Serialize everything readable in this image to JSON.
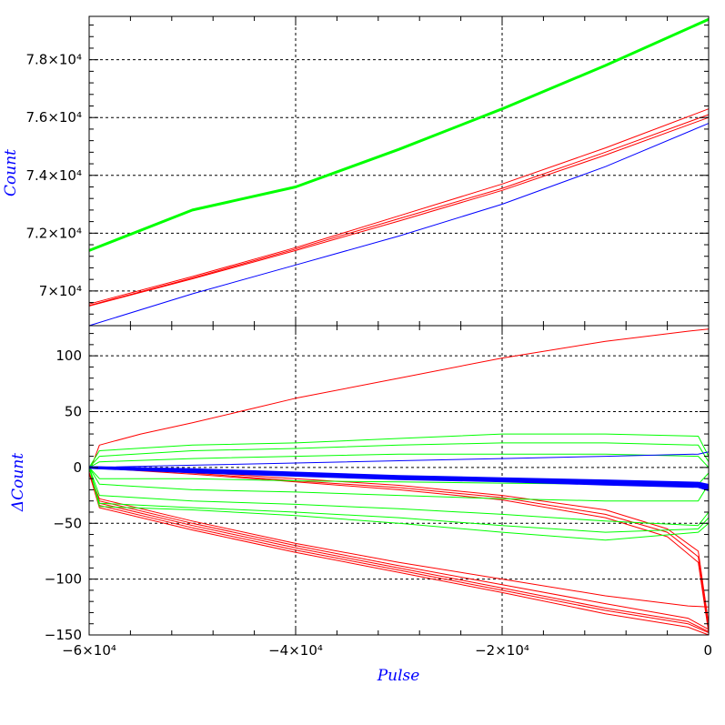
{
  "chart_data": [
    {
      "type": "line",
      "panel": "top",
      "ylabel": "Count",
      "ylim": [
        68800,
        79500
      ],
      "xlim": [
        -60000,
        0
      ],
      "grid": true,
      "ytick_labels": [
        "7×10⁴",
        "7.2×10⁴",
        "7.4×10⁴",
        "7.6×10⁴",
        "7.8×10⁴"
      ],
      "yticks": [
        70000,
        72000,
        74000,
        76000,
        78000
      ],
      "series": [
        {
          "color": "#00ff00",
          "x": [
            -60000,
            -50000,
            -40000,
            -30000,
            -20000,
            -10000,
            0
          ],
          "values": [
            71400,
            72800,
            73600,
            74900,
            76300,
            77800,
            79400
          ]
        },
        {
          "color": "#ff0000",
          "x": [
            -60000,
            -50000,
            -40000,
            -30000,
            -20000,
            -10000,
            0
          ],
          "values": [
            69500,
            70450,
            71450,
            72500,
            73550,
            74800,
            76100
          ]
        },
        {
          "color": "#ff0000",
          "x": [
            -60000,
            -50000,
            -40000,
            -30000,
            -20000,
            -10000,
            0
          ],
          "values": [
            69550,
            70500,
            71500,
            72600,
            73700,
            74950,
            76300
          ]
        },
        {
          "color": "#ff0000",
          "x": [
            -60000,
            -50000,
            -40000,
            -30000,
            -20000,
            -10000,
            0
          ],
          "values": [
            69480,
            70420,
            71400,
            72420,
            73480,
            74700,
            76000
          ]
        },
        {
          "color": "#0000ff",
          "x": [
            -60000,
            -50000,
            -40000,
            -30000,
            -20000,
            -10000,
            0
          ],
          "values": [
            68800,
            69900,
            70900,
            71900,
            73000,
            74300,
            75800
          ]
        }
      ]
    },
    {
      "type": "line",
      "panel": "bottom",
      "xlabel": "Pulse",
      "ylabel": "ΔCount",
      "ylim": [
        -150,
        127
      ],
      "xlim": [
        -60000,
        0
      ],
      "grid": true,
      "yticks": [
        -150,
        -100,
        -50,
        0,
        50,
        100
      ],
      "ytick_labels": [
        "−150",
        "−100",
        "−50",
        "0",
        "50",
        "100"
      ],
      "xticks": [
        -60000,
        -40000,
        -20000,
        0
      ],
      "xtick_labels": [
        "−6×10⁴",
        "−4×10⁴",
        "−2×10⁴",
        "0"
      ],
      "series": [
        {
          "color": "#ff0000",
          "x": [
            -60000,
            -59000,
            -55000,
            -50000,
            -40000,
            -30000,
            -20000,
            -10000,
            -2000,
            0
          ],
          "values": [
            -5,
            20,
            30,
            40,
            62,
            80,
            98,
            113,
            122,
            124
          ]
        },
        {
          "color": "#ff0000",
          "x": [
            -60000,
            -59000,
            -50000,
            -40000,
            -30000,
            -20000,
            -10000,
            -2000,
            0
          ],
          "values": [
            -5,
            -30,
            -50,
            -70,
            -88,
            -105,
            -122,
            -135,
            -145
          ]
        },
        {
          "color": "#ff0000",
          "x": [
            -60000,
            -59000,
            -50000,
            -40000,
            -30000,
            -20000,
            -10000,
            -2000,
            0
          ],
          "values": [
            -5,
            -32,
            -52,
            -72,
            -90,
            -108,
            -126,
            -138,
            -147
          ]
        },
        {
          "color": "#ff0000",
          "x": [
            -60000,
            -59000,
            -50000,
            -40000,
            -30000,
            -20000,
            -10000,
            -2000,
            0
          ],
          "values": [
            -5,
            -34,
            -54,
            -74,
            -92,
            -110,
            -128,
            -140,
            -148
          ]
        },
        {
          "color": "#ff0000",
          "x": [
            -60000,
            -59000,
            -50000,
            -40000,
            -30000,
            -20000,
            -10000,
            -2000,
            0
          ],
          "values": [
            -5,
            -36,
            -56,
            -76,
            -94,
            -112,
            -131,
            -143,
            -150
          ]
        },
        {
          "color": "#ff0000",
          "x": [
            -60000,
            -59000,
            -50000,
            -40000,
            -30000,
            -20000,
            -10000,
            -2000,
            0
          ],
          "values": [
            -5,
            -28,
            -48,
            -68,
            -85,
            -100,
            -115,
            -124,
            -125
          ]
        },
        {
          "color": "#ff0000",
          "x": [
            -60000,
            -55000,
            -50000,
            -40000,
            -30000,
            -20000,
            -10000,
            -4000,
            -1000,
            0
          ],
          "values": [
            0,
            -2,
            -5,
            -12,
            -18,
            -27,
            -42,
            -58,
            -80,
            -145
          ]
        },
        {
          "color": "#ff0000",
          "x": [
            -60000,
            -55000,
            -50000,
            -40000,
            -30000,
            -20000,
            -10000,
            -4000,
            -1000,
            0
          ],
          "values": [
            0,
            -3,
            -6,
            -13,
            -20,
            -29,
            -45,
            -62,
            -85,
            -148
          ]
        },
        {
          "color": "#ff0000",
          "x": [
            -60000,
            -55000,
            -50000,
            -40000,
            -30000,
            -20000,
            -10000,
            -4000,
            -1000,
            0
          ],
          "values": [
            0,
            -1,
            -4,
            -10,
            -16,
            -25,
            -38,
            -55,
            -75,
            -140
          ]
        },
        {
          "color": "#00ff00",
          "x": [
            -60000,
            -59000,
            -50000,
            -40000,
            -30000,
            -20000,
            -10000,
            -1000,
            0
          ],
          "values": [
            0,
            15,
            20,
            22,
            26,
            30,
            30,
            28,
            10
          ]
        },
        {
          "color": "#00ff00",
          "x": [
            -60000,
            -59000,
            -50000,
            -40000,
            -30000,
            -20000,
            -10000,
            -1000,
            0
          ],
          "values": [
            0,
            10,
            15,
            17,
            20,
            22,
            22,
            20,
            5
          ]
        },
        {
          "color": "#00ff00",
          "x": [
            -60000,
            -59000,
            -50000,
            -40000,
            -30000,
            -20000,
            -10000,
            -1000,
            0
          ],
          "values": [
            0,
            5,
            8,
            10,
            12,
            12,
            12,
            10,
            0
          ]
        },
        {
          "color": "#00ff00",
          "x": [
            -60000,
            -59000,
            -50000,
            -40000,
            -30000,
            -20000,
            -10000,
            -1000,
            0
          ],
          "values": [
            0,
            -10,
            -10,
            -12,
            -13,
            -14,
            -15,
            -15,
            -5
          ]
        },
        {
          "color": "#00ff00",
          "x": [
            -60000,
            -59000,
            -50000,
            -40000,
            -30000,
            -20000,
            -10000,
            -1000,
            0
          ],
          "values": [
            0,
            -15,
            -20,
            -22,
            -25,
            -28,
            -30,
            -30,
            -15
          ]
        },
        {
          "color": "#00ff00",
          "x": [
            -60000,
            -59000,
            -50000,
            -40000,
            -30000,
            -20000,
            -10000,
            -1000,
            0
          ],
          "values": [
            0,
            -25,
            -30,
            -33,
            -37,
            -42,
            -48,
            -52,
            -40
          ]
        },
        {
          "color": "#00ff00",
          "x": [
            -60000,
            -59000,
            -50000,
            -40000,
            -30000,
            -20000,
            -10000,
            -1000,
            0
          ],
          "values": [
            0,
            -32,
            -36,
            -40,
            -45,
            -52,
            -58,
            -55,
            -45
          ]
        },
        {
          "color": "#00ff00",
          "x": [
            -60000,
            -59000,
            -50000,
            -40000,
            -30000,
            -20000,
            -10000,
            -1000,
            0
          ],
          "values": [
            0,
            -35,
            -38,
            -43,
            -50,
            -58,
            -65,
            -58,
            -50
          ]
        },
        {
          "color": "#0000ff",
          "x": [
            -60000,
            -50000,
            -40000,
            -30000,
            -20000,
            -10000,
            -1000,
            0
          ],
          "values": [
            0,
            2,
            4,
            6,
            8,
            10,
            12,
            14
          ]
        },
        {
          "color": "#0000ff",
          "x": [
            -60000,
            -50000,
            -40000,
            -30000,
            -20000,
            -10000,
            -1000,
            0
          ],
          "values": [
            0,
            -3,
            -6,
            -9,
            -11,
            -13,
            -15,
            -18
          ]
        },
        {
          "color": "#0000ff",
          "x": [
            -60000,
            -50000,
            -40000,
            -30000,
            -20000,
            -10000,
            -1000,
            0
          ],
          "values": [
            0,
            -4,
            -7,
            -10,
            -12,
            -15,
            -17,
            -20
          ]
        },
        {
          "color": "#0000ff",
          "x": [
            -60000,
            -50000,
            -40000,
            -30000,
            -20000,
            -10000,
            -1000,
            0
          ],
          "values": [
            0,
            -2,
            -5,
            -8,
            -10,
            -12,
            -14,
            -16
          ]
        }
      ]
    }
  ]
}
